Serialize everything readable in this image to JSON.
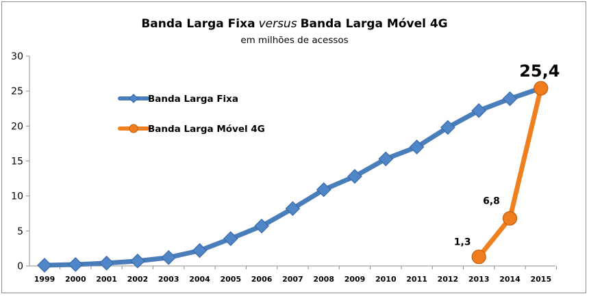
{
  "chart_data": {
    "type": "line",
    "title_part1": "Banda Larga Fixa",
    "title_italic": "versus",
    "title_part2": "Banda Larga Móvel 4G",
    "subtitle": "em milhões de acessos",
    "ylim": [
      0,
      30
    ],
    "yticks": [
      "0",
      "5",
      "10",
      "15",
      "20",
      "25",
      "30"
    ],
    "categories": [
      "1999",
      "2000",
      "2001",
      "2002",
      "2003",
      "2004",
      "2005",
      "2006",
      "2007",
      "2008",
      "2009",
      "2010",
      "2011",
      "2012",
      "2013",
      "2014",
      "2015"
    ],
    "grid": false,
    "legend_position": "upper-left",
    "series": [
      {
        "name": "Banda Larga Fixa",
        "color": "#4a7ebb",
        "marker": "diamond",
        "values": [
          0.1,
          0.2,
          0.4,
          0.7,
          1.2,
          2.2,
          3.9,
          5.7,
          8.2,
          10.9,
          12.8,
          15.3,
          17.0,
          19.8,
          22.2,
          23.9,
          25.4
        ]
      },
      {
        "name": "Banda Larga Móvel 4G",
        "color": "#f07f1f",
        "marker": "circle",
        "values": [
          null,
          null,
          null,
          null,
          null,
          null,
          null,
          null,
          null,
          null,
          null,
          null,
          null,
          null,
          1.3,
          6.8,
          25.4
        ]
      }
    ],
    "data_labels": [
      "1,3",
      "6,8",
      "25,4"
    ]
  }
}
